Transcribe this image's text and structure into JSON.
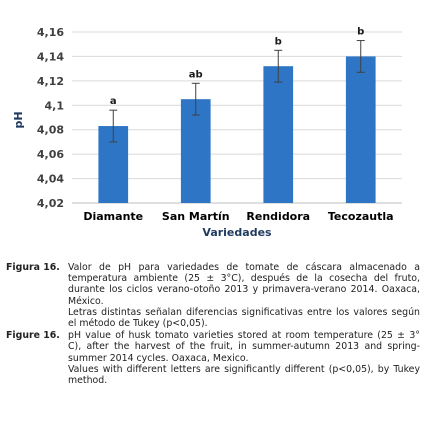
{
  "chart_data": {
    "type": "bar",
    "categories": [
      "Diamante",
      "San Martín",
      "Rendidora",
      "Tecozautla"
    ],
    "values": [
      4.083,
      4.105,
      4.132,
      4.14
    ],
    "errors": [
      0.013,
      0.013,
      0.013,
      0.013
    ],
    "significance": [
      "a",
      "ab",
      "b",
      "b"
    ],
    "xlabel": "Variedades",
    "ylabel": "pH",
    "ylim": [
      4.02,
      4.16
    ],
    "yticks": [
      "4,02",
      "4,04",
      "4,06",
      "4,08",
      "4,1",
      "4,12",
      "4,14",
      "4,16"
    ],
    "grid": true,
    "bar_color": "#2e75c6"
  },
  "captions": [
    {
      "label": "Figura 16.",
      "paragraphs": [
        "Valor de pH para variedades de tomate de cáscara almacenado a temperatura ambiente (25 ± 3°C), después de la cosecha del fruto, durante los ciclos verano-otoño 2013 y primavera-verano 2014. Oaxaca, México.",
        "Letras distintas señalan diferencias significativas entre los valores según el método de Tukey (p<0,05)."
      ]
    },
    {
      "label": "Figure 16.",
      "paragraphs": [
        "pH value of husk tomato varieties stored at room temperature (25 ± 3° C), after the harvest of the fruit, in summer-autumn 2013 and spring-summer 2014 cycles. Oaxaca, Mexico.",
        "Values with different letters are significantly different (p<0,05), by Tukey method."
      ]
    }
  ]
}
